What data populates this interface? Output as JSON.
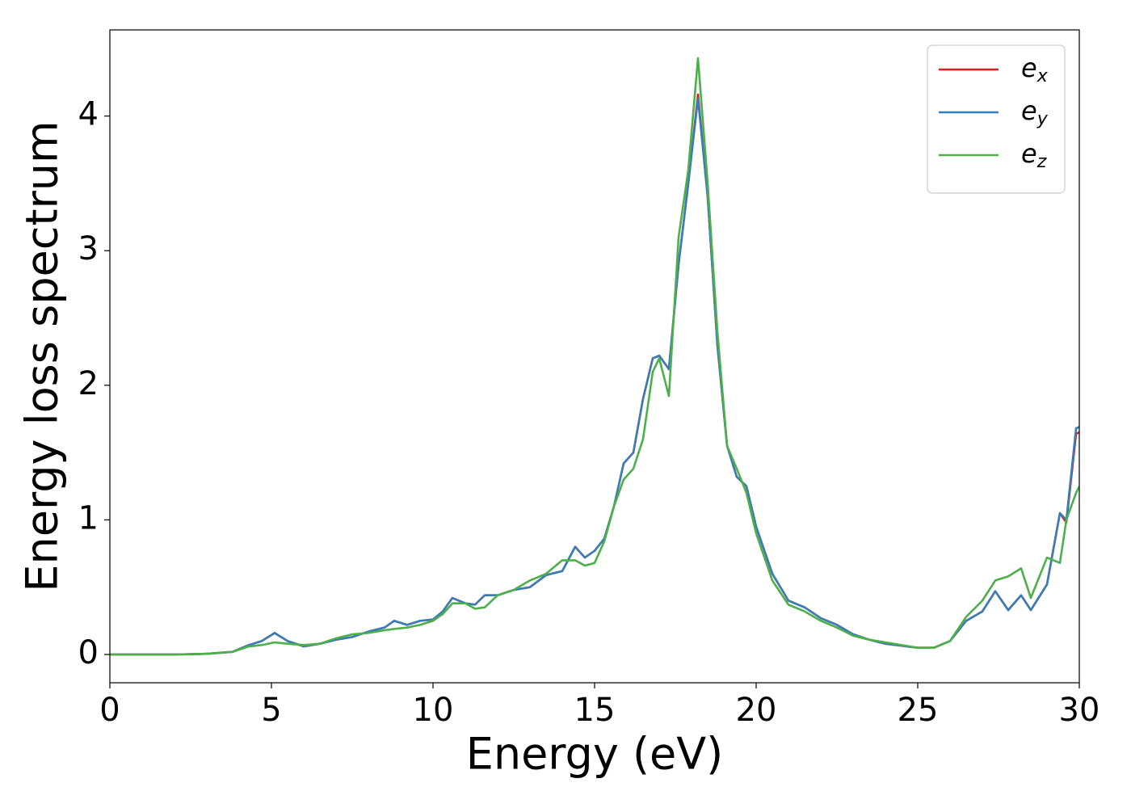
{
  "chart_data": {
    "type": "line",
    "xlabel": "Energy (eV)",
    "ylabel": "Energy loss spectrum",
    "x": [
      0,
      1,
      2,
      3,
      3.8,
      4.3,
      4.7,
      5.1,
      5.5,
      6,
      6.5,
      7,
      7.5,
      8,
      8.5,
      8.8,
      9.2,
      9.6,
      10,
      10.3,
      10.6,
      11,
      11.3,
      11.6,
      12,
      12.5,
      13,
      13.5,
      14,
      14.4,
      14.7,
      15,
      15.3,
      15.6,
      15.9,
      16.2,
      16.5,
      16.8,
      17,
      17.3,
      17.6,
      17.9,
      18.2,
      18.5,
      18.8,
      19.1,
      19.4,
      19.7,
      20,
      20.5,
      21,
      21.5,
      22,
      22.5,
      23,
      23.5,
      24,
      25,
      25.5,
      26,
      26.5,
      27,
      27.4,
      27.8,
      28.2,
      28.5,
      29,
      29.4,
      29.6,
      29.9,
      30
    ],
    "series": [
      {
        "name": "e",
        "subscript": "x",
        "color": "#e41a1c",
        "values": [
          0,
          0,
          0,
          0.005,
          0.02,
          0.07,
          0.1,
          0.16,
          0.1,
          0.06,
          0.08,
          0.11,
          0.13,
          0.17,
          0.2,
          0.25,
          0.22,
          0.25,
          0.26,
          0.32,
          0.42,
          0.38,
          0.37,
          0.44,
          0.44,
          0.48,
          0.5,
          0.59,
          0.62,
          0.8,
          0.72,
          0.77,
          0.86,
          1.1,
          1.42,
          1.5,
          1.9,
          2.2,
          2.22,
          2.12,
          2.9,
          3.5,
          4.16,
          3.4,
          2.3,
          1.55,
          1.32,
          1.25,
          0.95,
          0.6,
          0.4,
          0.35,
          0.27,
          0.22,
          0.15,
          0.11,
          0.08,
          0.05,
          0.05,
          0.1,
          0.25,
          0.32,
          0.47,
          0.33,
          0.44,
          0.33,
          0.52,
          1.05,
          0.98,
          1.64,
          1.65
        ]
      },
      {
        "name": "e",
        "subscript": "y",
        "color": "#377eb8",
        "values": [
          0,
          0,
          0,
          0.005,
          0.02,
          0.07,
          0.1,
          0.16,
          0.1,
          0.06,
          0.08,
          0.11,
          0.13,
          0.17,
          0.2,
          0.25,
          0.22,
          0.25,
          0.26,
          0.32,
          0.42,
          0.38,
          0.37,
          0.44,
          0.44,
          0.48,
          0.5,
          0.59,
          0.62,
          0.8,
          0.72,
          0.77,
          0.86,
          1.1,
          1.42,
          1.5,
          1.9,
          2.2,
          2.22,
          2.12,
          2.9,
          3.5,
          4.13,
          3.4,
          2.3,
          1.55,
          1.32,
          1.25,
          0.95,
          0.6,
          0.4,
          0.35,
          0.27,
          0.22,
          0.15,
          0.11,
          0.08,
          0.05,
          0.05,
          0.1,
          0.25,
          0.32,
          0.47,
          0.33,
          0.44,
          0.33,
          0.52,
          1.05,
          1.0,
          1.68,
          1.69
        ]
      },
      {
        "name": "e",
        "subscript": "z",
        "color": "#4daf4a",
        "values": [
          0,
          0,
          0,
          0.005,
          0.02,
          0.06,
          0.07,
          0.09,
          0.08,
          0.07,
          0.08,
          0.12,
          0.15,
          0.16,
          0.18,
          0.19,
          0.2,
          0.22,
          0.25,
          0.3,
          0.38,
          0.38,
          0.34,
          0.35,
          0.44,
          0.48,
          0.55,
          0.6,
          0.7,
          0.7,
          0.66,
          0.68,
          0.84,
          1.1,
          1.3,
          1.38,
          1.6,
          2.1,
          2.2,
          1.92,
          3.1,
          3.6,
          4.43,
          3.5,
          2.4,
          1.55,
          1.38,
          1.2,
          0.9,
          0.55,
          0.37,
          0.32,
          0.25,
          0.2,
          0.14,
          0.11,
          0.09,
          0.05,
          0.05,
          0.1,
          0.28,
          0.4,
          0.55,
          0.58,
          0.64,
          0.42,
          0.72,
          0.68,
          1.0,
          1.2,
          1.25
        ]
      }
    ],
    "xlim": [
      0,
      30
    ],
    "xticks": [
      0,
      5,
      10,
      15,
      20,
      25,
      30
    ],
    "ylim": [
      -0.21,
      4.64
    ],
    "yticks": [
      0,
      1,
      2,
      3,
      4
    ],
    "legend": "upper right"
  }
}
